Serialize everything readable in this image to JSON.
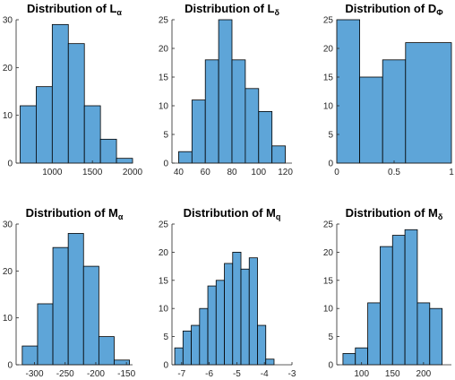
{
  "style": {
    "bar_color": "#5ea5d8",
    "edge_color": "#000000",
    "axis_color": "#262626"
  },
  "chart_data": [
    {
      "type": "bar",
      "title_main": "Distribution of L",
      "title_sub": "α",
      "bin_edges": [
        600,
        800,
        1000,
        1200,
        1400,
        1600,
        1800,
        2000
      ],
      "values": [
        12,
        16,
        29,
        25,
        12,
        5,
        1
      ],
      "xlim": [
        550,
        2000
      ],
      "ylim": [
        0,
        30
      ],
      "xticks": [
        1000,
        1500,
        2000
      ],
      "yticks": [
        0,
        10,
        20,
        30
      ],
      "xticklabels": [
        "1000",
        "1500",
        "2000"
      ],
      "yticklabels": [
        "0",
        "10",
        "20",
        "30"
      ]
    },
    {
      "type": "bar",
      "title_main": "Distribution of L",
      "title_sub": "δ",
      "bin_edges": [
        40,
        50,
        60,
        70,
        80,
        90,
        100,
        110,
        120
      ],
      "values": [
        2,
        11,
        18,
        25,
        18,
        13,
        9,
        3
      ],
      "xlim": [
        35,
        125
      ],
      "ylim": [
        0,
        25
      ],
      "xticks": [
        40,
        60,
        80,
        100,
        120
      ],
      "yticks": [
        0,
        5,
        10,
        15,
        20,
        25
      ],
      "xticklabels": [
        "40",
        "60",
        "80",
        "100",
        "120"
      ],
      "yticklabels": [
        "0",
        "5",
        "10",
        "15",
        "20",
        "25"
      ]
    },
    {
      "type": "bar",
      "title_main": "Distribution of D",
      "title_sub": "Φ",
      "bin_edges": [
        0,
        0.2,
        0.4,
        0.6,
        1.0
      ],
      "values": [
        25,
        15,
        18,
        21
      ],
      "xlim": [
        0,
        1.0
      ],
      "ylim": [
        0,
        25
      ],
      "xticks": [
        0,
        0.5,
        1
      ],
      "yticks": [
        0,
        5,
        10,
        15,
        20,
        25
      ],
      "xticklabels": [
        "0",
        "0.5",
        "1"
      ],
      "yticklabels": [
        "0",
        "5",
        "10",
        "15",
        "20",
        "25"
      ]
    },
    {
      "type": "bar",
      "title_main": "Distribution of M",
      "title_sub": "α",
      "bin_edges": [
        -320,
        -295,
        -270,
        -245,
        -220,
        -195,
        -170,
        -145
      ],
      "values": [
        4,
        13,
        25,
        28,
        21,
        6,
        1
      ],
      "xlim": [
        -330,
        -140
      ],
      "ylim": [
        0,
        30
      ],
      "xticks": [
        -300,
        -250,
        -200,
        -150
      ],
      "yticks": [
        0,
        10,
        20,
        30
      ],
      "xticklabels": [
        "-300",
        "-250",
        "-200",
        "-150"
      ],
      "yticklabels": [
        "0",
        "10",
        "20",
        "30"
      ]
    },
    {
      "type": "bar",
      "title_main": "Distribution of M",
      "title_sub": "q",
      "bin_edges": [
        -7.25,
        -6.95,
        -6.65,
        -6.35,
        -6.05,
        -5.75,
        -5.45,
        -5.15,
        -4.85,
        -4.55,
        -4.25,
        -3.95,
        -3.65
      ],
      "values": [
        3,
        6,
        7,
        10,
        14,
        15,
        18,
        20,
        17,
        19,
        7,
        1
      ],
      "xlim": [
        -7.35,
        -3
      ],
      "ylim": [
        0,
        25
      ],
      "xticks": [
        -7,
        -6,
        -5,
        -4,
        -3
      ],
      "yticks": [
        0,
        5,
        10,
        15,
        20,
        25
      ],
      "xticklabels": [
        "-7",
        "-6",
        "-5",
        "-4",
        "-3"
      ],
      "yticklabels": [
        "0",
        "5",
        "10",
        "15",
        "20",
        "25"
      ]
    },
    {
      "type": "bar",
      "title_main": "Distribution of M",
      "title_sub": "δ",
      "bin_edges": [
        70,
        90,
        110,
        130,
        150,
        170,
        190,
        210,
        230
      ],
      "values": [
        2,
        3,
        11,
        21,
        23,
        24,
        11,
        10
      ],
      "xlim": [
        60,
        245
      ],
      "ylim": [
        0,
        25
      ],
      "xticks": [
        100,
        150,
        200
      ],
      "yticks": [
        0,
        5,
        10,
        15,
        20,
        25
      ],
      "xticklabels": [
        "100",
        "150",
        "200"
      ],
      "yticklabels": [
        "0",
        "5",
        "10",
        "15",
        "20",
        "25"
      ]
    }
  ]
}
